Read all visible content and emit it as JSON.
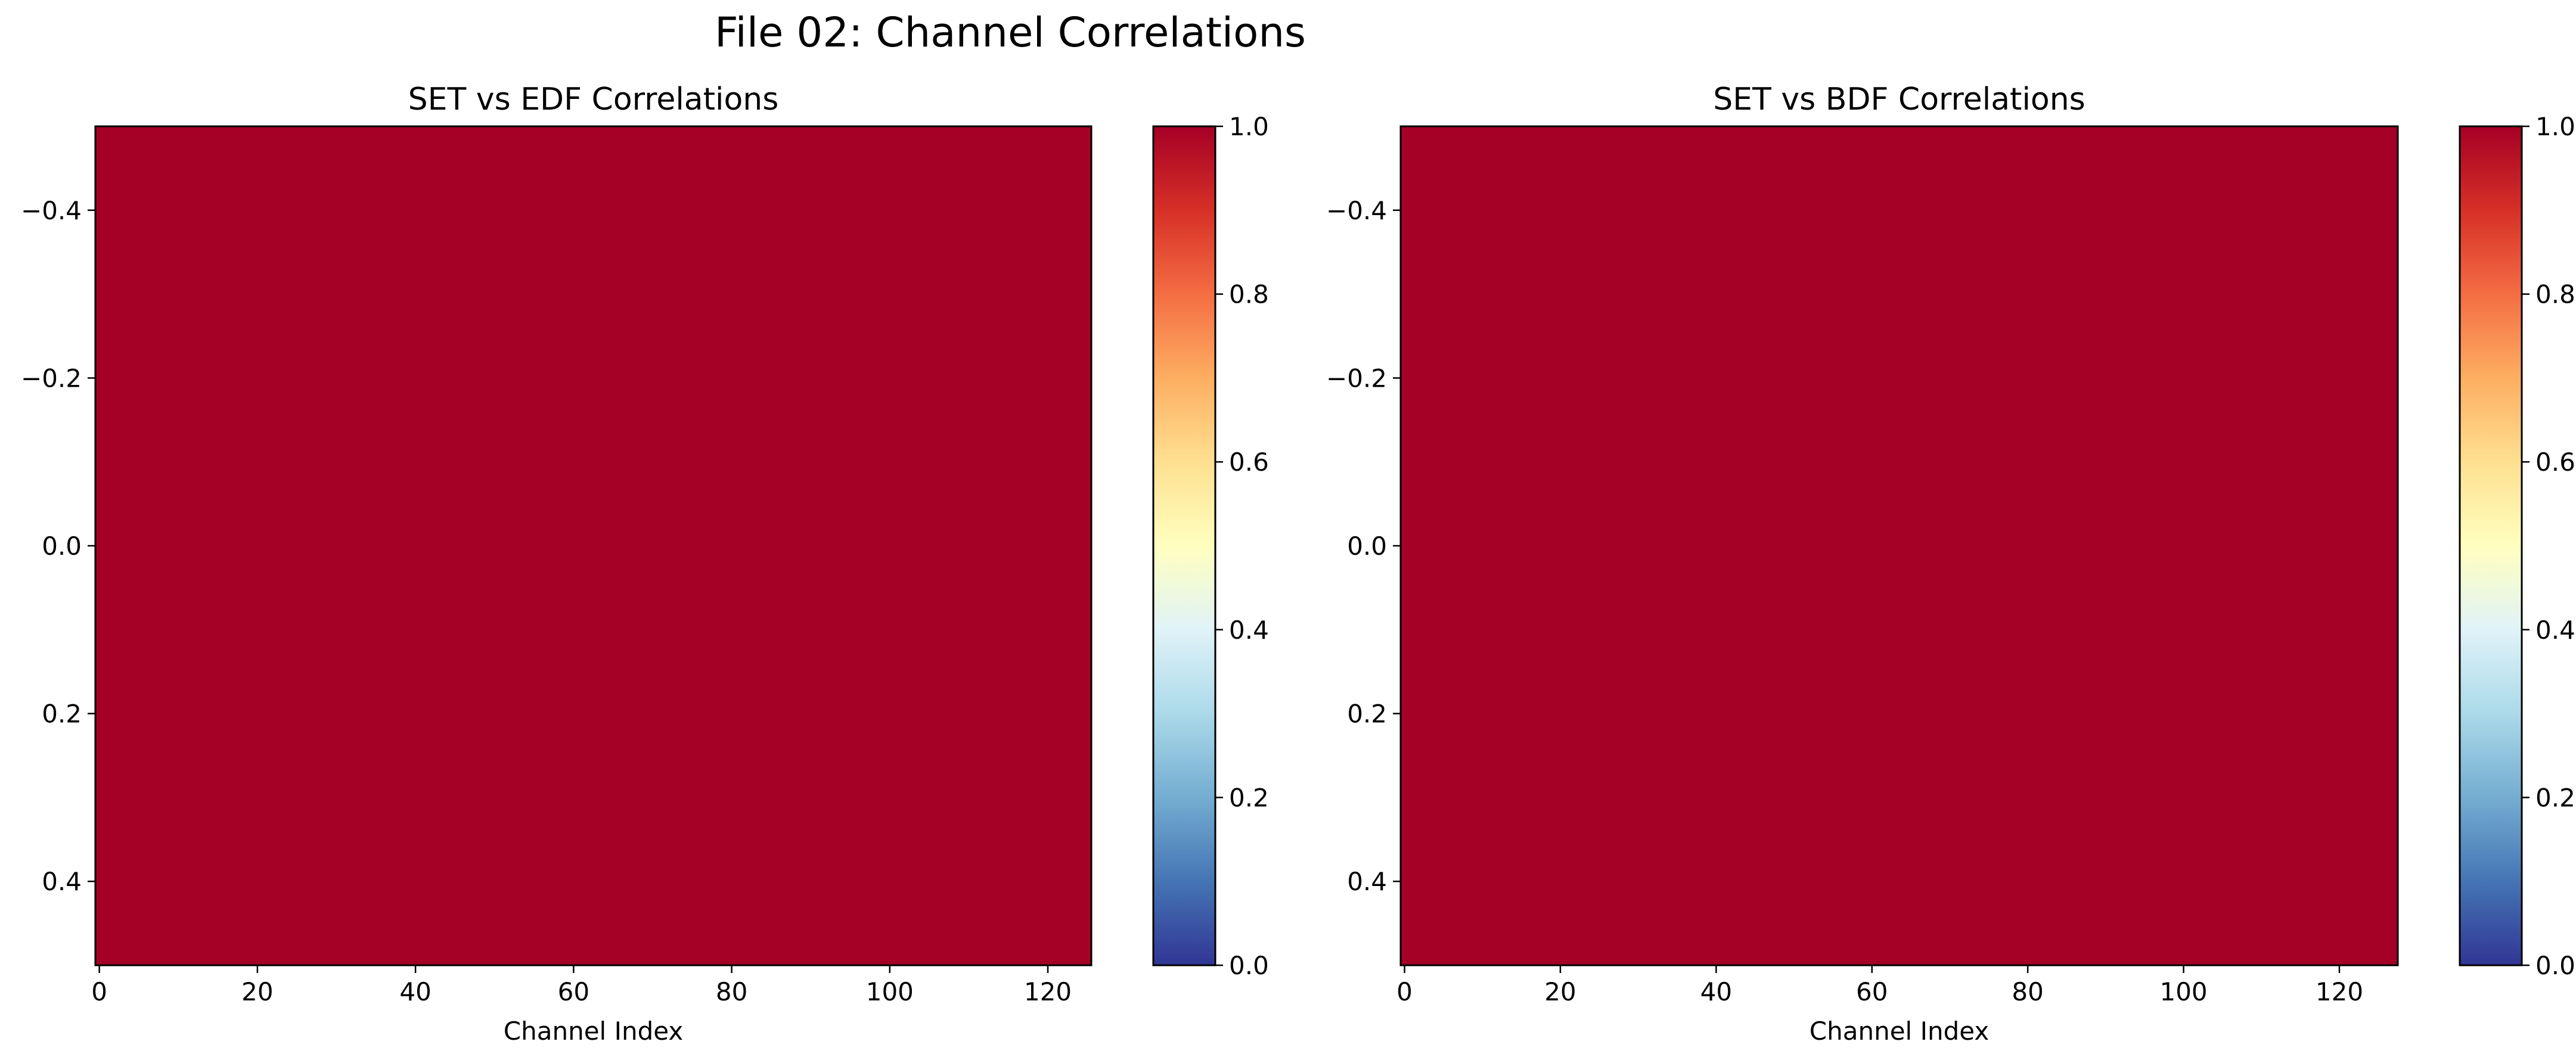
{
  "figure": {
    "suptitle": "File 02: Channel Correlations"
  },
  "chart_data": [
    {
      "type": "heatmap",
      "title": "SET vs EDF Correlations",
      "xlabel": "Channel Index",
      "ylabel": "",
      "n_columns": 126,
      "n_rows": 1,
      "values": [
        [
          1.0
        ]
      ],
      "value_note_constant": 1.0,
      "xlim": [
        -0.5,
        125.5
      ],
      "ylim": [
        0.5,
        -0.5
      ],
      "x_ticks": [
        0,
        20,
        40,
        60,
        80,
        100,
        120
      ],
      "x_tick_labels": [
        "0",
        "20",
        "40",
        "60",
        "80",
        "100",
        "120"
      ],
      "y_ticks": [
        -0.4,
        -0.2,
        0.0,
        0.2,
        0.4
      ],
      "y_tick_labels": [
        "−0.4",
        "−0.2",
        "0.0",
        "0.2",
        "0.4"
      ],
      "colorbar": {
        "vmin": 0.0,
        "vmax": 1.0,
        "ticks": [
          0.0,
          0.2,
          0.4,
          0.6,
          0.8,
          1.0
        ],
        "tick_labels": [
          "0.0",
          "0.2",
          "0.4",
          "0.6",
          "0.8",
          "1.0"
        ],
        "colormap": "RdYlBu_r"
      },
      "grid": false
    },
    {
      "type": "heatmap",
      "title": "SET vs BDF Correlations",
      "xlabel": "Channel Index",
      "ylabel": "",
      "n_columns": 128,
      "n_rows": 1,
      "values": [
        [
          1.0
        ]
      ],
      "value_note_constant": 1.0,
      "xlim": [
        -0.5,
        127.5
      ],
      "ylim": [
        0.5,
        -0.5
      ],
      "x_ticks": [
        0,
        20,
        40,
        60,
        80,
        100,
        120
      ],
      "x_tick_labels": [
        "0",
        "20",
        "40",
        "60",
        "80",
        "100",
        "120"
      ],
      "y_ticks": [
        -0.4,
        -0.2,
        0.0,
        0.2,
        0.4
      ],
      "y_tick_labels": [
        "−0.4",
        "−0.2",
        "0.0",
        "0.2",
        "0.4"
      ],
      "colorbar": {
        "vmin": 0.0,
        "vmax": 1.0,
        "ticks": [
          0.0,
          0.2,
          0.4,
          0.6,
          0.8,
          1.0
        ],
        "tick_labels": [
          "0.0",
          "0.2",
          "0.4",
          "0.6",
          "0.8",
          "1.0"
        ],
        "colormap": "RdYlBu_r"
      },
      "grid": false
    }
  ],
  "colors": {
    "cell_value_1": "#a50026",
    "colormap_stops": [
      "#313695",
      "#4575b4",
      "#74add1",
      "#abd9e9",
      "#e0f3f8",
      "#ffffbf",
      "#fee090",
      "#fdae61",
      "#f46d43",
      "#d73027",
      "#a50026"
    ]
  }
}
